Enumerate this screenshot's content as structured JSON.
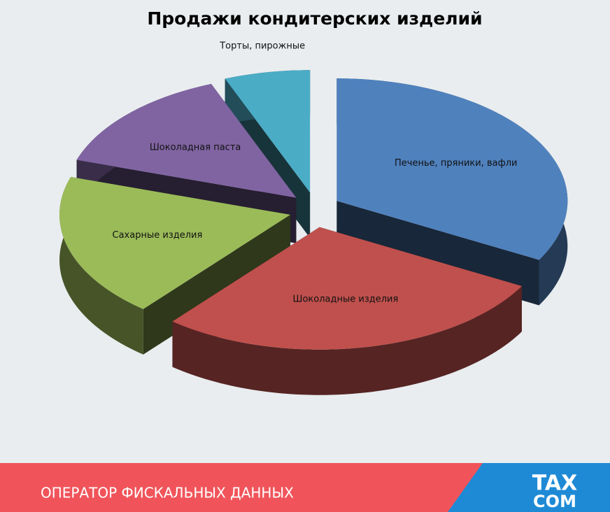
{
  "chart_data": {
    "type": "pie3d",
    "title": "Продажи кондитерских изделий",
    "categories": [
      "Печенье, пряники, вафли",
      "Шоколадные изделия",
      "Сахарные изделия",
      "Шоколадная паста",
      "Торты, пирожные"
    ],
    "values": [
      33,
      28,
      19,
      14,
      6
    ],
    "colors": [
      "#4f81bd",
      "#c0504d",
      "#9bbb59",
      "#8064a2",
      "#4bacc6"
    ]
  },
  "footer": {
    "text": "ОПЕРАТОР ФИСКАЛЬНЫХ ДАННЫХ",
    "logo": [
      "TAX",
      "COM"
    ]
  }
}
